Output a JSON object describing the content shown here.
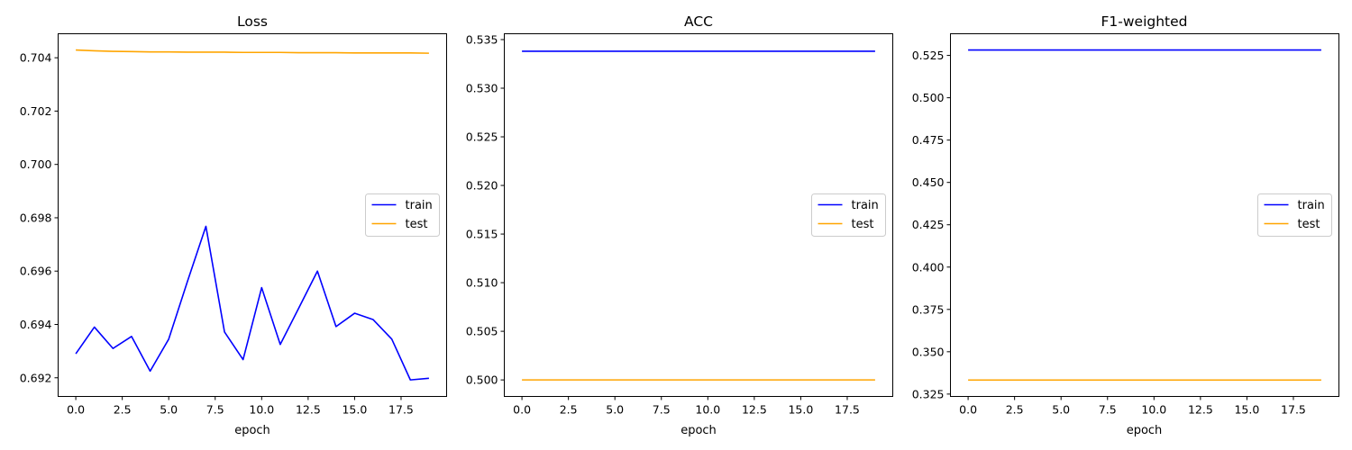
{
  "chart_data": [
    {
      "type": "line",
      "title": "Loss",
      "xlabel": "epoch",
      "ylabel": "",
      "x": [
        0,
        1,
        2,
        3,
        4,
        5,
        6,
        7,
        8,
        9,
        10,
        11,
        12,
        13,
        14,
        15,
        16,
        17,
        18,
        19
      ],
      "xlim": [
        -0.95,
        19.95
      ],
      "ylim": [
        0.6913,
        0.7049
      ],
      "xticks": [
        0.0,
        2.5,
        5.0,
        7.5,
        10.0,
        12.5,
        15.0,
        17.5
      ],
      "xtick_labels": [
        "0.0",
        "2.5",
        "5.0",
        "7.5",
        "10.0",
        "12.5",
        "15.0",
        "17.5"
      ],
      "yticks": [
        0.692,
        0.694,
        0.696,
        0.698,
        0.7,
        0.702,
        0.704
      ],
      "ytick_labels": [
        "0.692",
        "0.694",
        "0.696",
        "0.698",
        "0.700",
        "0.702",
        "0.704"
      ],
      "legend": "center right",
      "grid": false,
      "series": [
        {
          "name": "train",
          "color": "#0000ff",
          "values": [
            0.6929,
            0.6939,
            0.6931,
            0.69355,
            0.69225,
            0.69345,
            0.6956,
            0.69768,
            0.69372,
            0.69268,
            0.69538,
            0.69325,
            0.69462,
            0.696,
            0.69392,
            0.69442,
            0.69418,
            0.69345,
            0.69192,
            0.69198
          ]
        },
        {
          "name": "test",
          "color": "#ffa500",
          "values": [
            0.70429,
            0.70426,
            0.70424,
            0.70423,
            0.70422,
            0.70422,
            0.70421,
            0.70421,
            0.70421,
            0.7042,
            0.7042,
            0.7042,
            0.70419,
            0.70419,
            0.70419,
            0.70418,
            0.70418,
            0.70418,
            0.70418,
            0.70417
          ]
        }
      ]
    },
    {
      "type": "line",
      "title": "ACC",
      "xlabel": "epoch",
      "ylabel": "",
      "x": [
        0,
        1,
        2,
        3,
        4,
        5,
        6,
        7,
        8,
        9,
        10,
        11,
        12,
        13,
        14,
        15,
        16,
        17,
        18,
        19
      ],
      "xlim": [
        -0.95,
        19.95
      ],
      "ylim": [
        0.4983,
        0.5356
      ],
      "xticks": [
        0.0,
        2.5,
        5.0,
        7.5,
        10.0,
        12.5,
        15.0,
        17.5
      ],
      "xtick_labels": [
        "0.0",
        "2.5",
        "5.0",
        "7.5",
        "10.0",
        "12.5",
        "15.0",
        "17.5"
      ],
      "yticks": [
        0.5,
        0.505,
        0.51,
        0.515,
        0.52,
        0.525,
        0.53,
        0.535
      ],
      "ytick_labels": [
        "0.500",
        "0.505",
        "0.510",
        "0.515",
        "0.520",
        "0.525",
        "0.530",
        "0.535"
      ],
      "legend": "center right",
      "grid": false,
      "series": [
        {
          "name": "train",
          "color": "#0000ff",
          "values": [
            0.5338,
            0.5338,
            0.5338,
            0.5338,
            0.5338,
            0.5338,
            0.5338,
            0.5338,
            0.5338,
            0.5338,
            0.5338,
            0.5338,
            0.5338,
            0.5338,
            0.5338,
            0.5338,
            0.5338,
            0.5338,
            0.5338,
            0.5338
          ]
        },
        {
          "name": "test",
          "color": "#ffa500",
          "values": [
            0.5,
            0.5,
            0.5,
            0.5,
            0.5,
            0.5,
            0.5,
            0.5,
            0.5,
            0.5,
            0.5,
            0.5,
            0.5,
            0.5,
            0.5,
            0.5,
            0.5,
            0.5,
            0.5,
            0.5
          ]
        }
      ]
    },
    {
      "type": "line",
      "title": "F1-weighted",
      "xlabel": "epoch",
      "ylabel": "",
      "x": [
        0,
        1,
        2,
        3,
        4,
        5,
        6,
        7,
        8,
        9,
        10,
        11,
        12,
        13,
        14,
        15,
        16,
        17,
        18,
        19
      ],
      "xlim": [
        -0.95,
        19.95
      ],
      "ylim": [
        0.3236,
        0.5378
      ],
      "xticks": [
        0.0,
        2.5,
        5.0,
        7.5,
        10.0,
        12.5,
        15.0,
        17.5
      ],
      "xtick_labels": [
        "0.0",
        "2.5",
        "5.0",
        "7.5",
        "10.0",
        "12.5",
        "15.0",
        "17.5"
      ],
      "yticks": [
        0.325,
        0.35,
        0.375,
        0.4,
        0.425,
        0.45,
        0.475,
        0.5,
        0.525
      ],
      "ytick_labels": [
        "0.325",
        "0.350",
        "0.375",
        "0.400",
        "0.425",
        "0.450",
        "0.475",
        "0.500",
        "0.525"
      ],
      "legend": "center right",
      "grid": false,
      "series": [
        {
          "name": "train",
          "color": "#0000ff",
          "values": [
            0.5282,
            0.5282,
            0.5282,
            0.5282,
            0.5282,
            0.5282,
            0.5282,
            0.5282,
            0.5282,
            0.5282,
            0.5282,
            0.5282,
            0.5282,
            0.5282,
            0.5282,
            0.5282,
            0.5282,
            0.5282,
            0.5282,
            0.5282
          ]
        },
        {
          "name": "test",
          "color": "#ffa500",
          "values": [
            0.3333,
            0.3333,
            0.3333,
            0.3333,
            0.3333,
            0.3333,
            0.3333,
            0.3333,
            0.3333,
            0.3333,
            0.3333,
            0.3333,
            0.3333,
            0.3333,
            0.3333,
            0.3333,
            0.3333,
            0.3333,
            0.3333,
            0.3333
          ]
        }
      ]
    }
  ]
}
